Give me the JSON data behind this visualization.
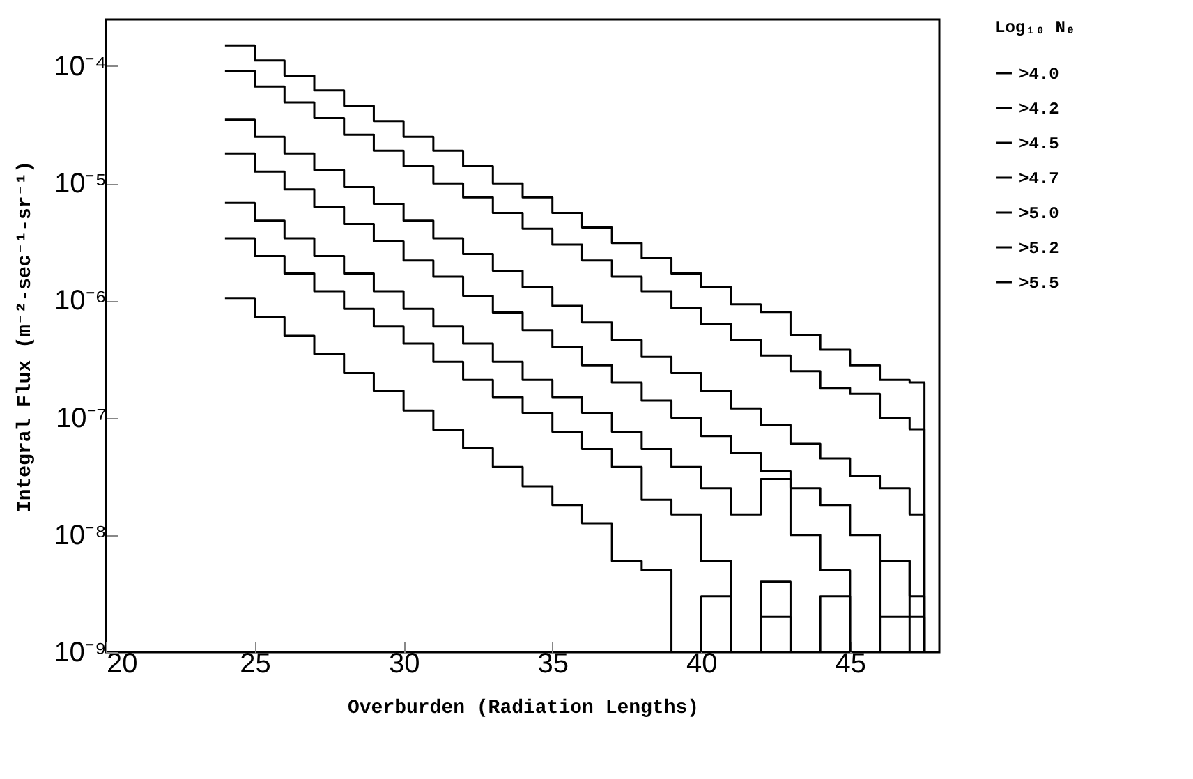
{
  "chart_data": {
    "type": "step",
    "xlabel": "Overburden (Radiation Lengths)",
    "ylabel": "Integral Flux (m⁻²-sec⁻¹-sr⁻¹)",
    "legend_title": "Log₁₀ Nₑ",
    "legend": "right",
    "log": "y",
    "line_style": "solid",
    "xlim": [
      20,
      48
    ],
    "xticks": [
      20,
      25,
      30,
      35,
      40,
      45
    ],
    "ylim": [
      1e-09,
      0.00025
    ],
    "yticks": [
      {
        "value": 1e-09,
        "label": "10⁻⁹"
      },
      {
        "value": 1e-08,
        "label": "10⁻⁸"
      },
      {
        "value": 1e-07,
        "label": "10⁻⁷"
      },
      {
        "value": 1e-06,
        "label": "10⁻⁶"
      },
      {
        "value": 1e-05,
        "label": "10⁻⁵"
      },
      {
        "value": 0.0001,
        "label": "10⁻⁴"
      }
    ],
    "x": [
      24,
      25,
      26,
      27,
      28,
      29,
      30,
      31,
      32,
      33,
      34,
      35,
      36,
      37,
      38,
      39,
      40,
      41,
      42,
      43,
      44,
      45,
      46,
      47,
      47.5
    ],
    "series": [
      {
        "name": ">4.0",
        "color": "#000000",
        "values": [
          0.00015,
          0.000112,
          8.3e-05,
          6.2e-05,
          4.6e-05,
          3.4e-05,
          2.5e-05,
          1.9e-05,
          1.4e-05,
          1e-05,
          7.6e-06,
          5.6e-06,
          4.2e-06,
          3.1e-06,
          2.3e-06,
          1.7e-06,
          1.3e-06,
          9.3e-07,
          8e-07,
          5.1e-07,
          3.8e-07,
          2.8e-07,
          2.1e-07,
          2e-07,
          1e-09
        ]
      },
      {
        "name": ">4.2",
        "color": "#000000",
        "values": [
          9.1e-05,
          6.7e-05,
          4.9e-05,
          3.6e-05,
          2.6e-05,
          1.9e-05,
          1.4e-05,
          1e-05,
          7.6e-06,
          5.6e-06,
          4.1e-06,
          3e-06,
          2.2e-06,
          1.6e-06,
          1.2e-06,
          8.6e-07,
          6.3e-07,
          4.6e-07,
          3.4e-07,
          2.5e-07,
          1.8e-07,
          1.6e-07,
          1e-07,
          8e-08,
          1e-09
        ]
      },
      {
        "name": ">4.5",
        "color": "#000000",
        "values": [
          3.5e-05,
          2.5e-05,
          1.8e-05,
          1.3e-05,
          9.3e-06,
          6.7e-06,
          4.8e-06,
          3.4e-06,
          2.5e-06,
          1.8e-06,
          1.3e-06,
          9e-07,
          6.5e-07,
          4.6e-07,
          3.3e-07,
          2.4e-07,
          1.7e-07,
          1.2e-07,
          8.7e-08,
          6e-08,
          4.5e-08,
          3.2e-08,
          2.5e-08,
          1.5e-08,
          1e-09
        ]
      },
      {
        "name": ">4.7",
        "color": "#000000",
        "values": [
          1.8e-05,
          1.26e-05,
          8.9e-06,
          6.3e-06,
          4.5e-06,
          3.2e-06,
          2.2e-06,
          1.6e-06,
          1.1e-06,
          7.9e-07,
          5.6e-07,
          4e-07,
          2.8e-07,
          2e-07,
          1.4e-07,
          1e-07,
          7e-08,
          5e-08,
          3.5e-08,
          2.5e-08,
          1.8e-08,
          1e-08,
          6e-09,
          3e-09,
          1e-09
        ]
      },
      {
        "name": ">5.0",
        "color": "#000000",
        "values": [
          6.8e-06,
          4.8e-06,
          3.4e-06,
          2.4e-06,
          1.7e-06,
          1.2e-06,
          8.5e-07,
          6e-07,
          4.3e-07,
          3e-07,
          2.1e-07,
          1.5e-07,
          1.1e-07,
          7.6e-08,
          5.4e-08,
          3.8e-08,
          2.5e-08,
          1.5e-08,
          3e-08,
          1e-08,
          5e-09,
          1e-09,
          6e-09,
          2e-09,
          1e-09
        ]
      },
      {
        "name": ">5.2",
        "color": "#000000",
        "values": [
          3.4e-06,
          2.4e-06,
          1.7e-06,
          1.2e-06,
          8.5e-07,
          6e-07,
          4.3e-07,
          3e-07,
          2.1e-07,
          1.5e-07,
          1.1e-07,
          7.6e-08,
          5.4e-08,
          3.8e-08,
          2e-08,
          1.5e-08,
          6e-09,
          1e-09,
          4e-09,
          1e-09,
          3e-09,
          1e-09,
          2e-09,
          1e-09,
          1e-09
        ]
      },
      {
        "name": ">5.5",
        "color": "#000000",
        "values": [
          1.05e-06,
          7.2e-07,
          5e-07,
          3.5e-07,
          2.4e-07,
          1.7e-07,
          1.15e-07,
          7.9e-08,
          5.5e-08,
          3.8e-08,
          2.6e-08,
          1.8e-08,
          1.26e-08,
          6e-09,
          5e-09,
          1e-09,
          3e-09,
          1e-09,
          2e-09,
          1e-09,
          1e-09,
          1e-09,
          1e-09,
          1e-09,
          1e-09
        ]
      }
    ]
  }
}
